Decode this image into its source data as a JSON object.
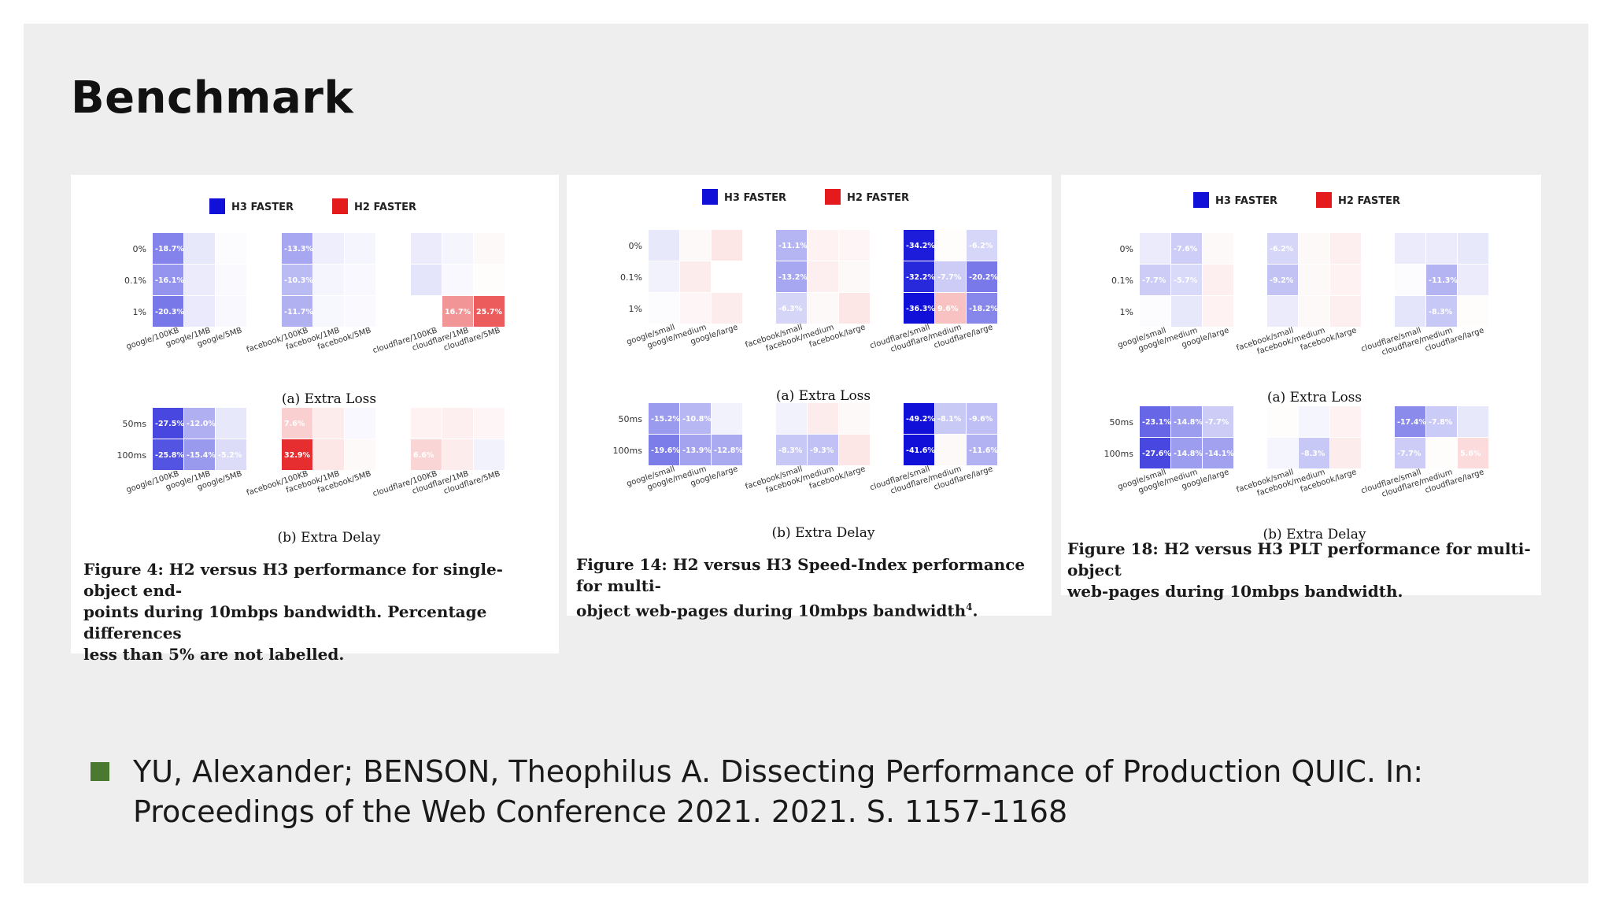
{
  "slide": {
    "title": "Benchmark",
    "reference_line1": "YU, Alexander; BENSON, Theophilus A. Dissecting Performance of Production QUIC. In:",
    "reference_line2": "Proceedings of the Web Conference 2021. 2021. S. 1157-1168",
    "bullet_color": "#4a7a30"
  },
  "colors": {
    "h3": "#1010d8",
    "h2": "#e41a1c"
  },
  "figures": [
    {
      "legend": [
        "H3 FASTER",
        "H2 FASTER"
      ],
      "caption_lines": [
        "Figure 4: H2 versus H3 performance for single-object end-",
        "points during 10mbps bandwidth. Percentage differences",
        "less than 5% are not labelled."
      ],
      "caption_sup": "",
      "subplots": [
        {
          "label": "(a) Extra Loss",
          "rows": [
            "0%",
            "0.1%",
            "1%"
          ],
          "groups": [
            {
              "cols": [
                "google/100KB",
                "google/1MB",
                "google/5MB"
              ],
              "values": [
                [
                  -18.7,
                  -3.5,
                  -0.5
                ],
                [
                  -16.1,
                  -3.0,
                  -0.8
                ],
                [
                  -20.3,
                  -3.2,
                  -1.0
                ]
              ]
            },
            {
              "cols": [
                "facebook/100KB",
                "facebook/1MB",
                "facebook/5MB"
              ],
              "values": [
                [
                  -13.3,
                  -2.5,
                  -1.5
                ],
                [
                  -10.3,
                  -1.5,
                  -1.0
                ],
                [
                  -11.7,
                  -1.2,
                  -0.8
                ]
              ]
            },
            {
              "cols": [
                "cloudflare/100KB",
                "cloudflare/1MB",
                "cloudflare/5MB"
              ],
              "values": [
                [
                  -3.0,
                  -1.5,
                  1.0
                ],
                [
                  -4.0,
                  -1.0,
                  0.5
                ],
                [
                  0,
                  16.7,
                  25.7
                ]
              ]
            }
          ]
        },
        {
          "label": "(b) Extra Delay",
          "rows": [
            "50ms",
            "100ms"
          ],
          "groups": [
            {
              "cols": [
                "google/100KB",
                "google/1MB",
                "google/5MB"
              ],
              "values": [
                [
                  -27.5,
                  -12.0,
                  -3.5
                ],
                [
                  -25.8,
                  -15.4,
                  -5.2
                ]
              ]
            },
            {
              "cols": [
                "facebook/100KB",
                "facebook/1MB",
                "facebook/5MB"
              ],
              "values": [
                [
                  7.6,
                  3.0,
                  -1.0
                ],
                [
                  32.9,
                  4.0,
                  1.0
                ]
              ]
            },
            {
              "cols": [
                "cloudflare/100KB",
                "cloudflare/1MB",
                "cloudflare/5MB"
              ],
              "values": [
                [
                  2.0,
                  2.5,
                  1.5
                ],
                [
                  6.6,
                  3.0,
                  -2.0
                ]
              ]
            }
          ]
        }
      ]
    },
    {
      "legend": [
        "H3 FASTER",
        "H2 FASTER"
      ],
      "caption_lines": [
        "Figure 14: H2 versus H3 Speed-Index performance for multi-",
        "object web-pages during 10mbps bandwidth"
      ],
      "caption_sup": "4",
      "subplots": [
        {
          "label": "(a) Extra Loss",
          "rows": [
            "0%",
            "0.1%",
            "1%"
          ],
          "groups": [
            {
              "cols": [
                "google/small",
                "google/medium",
                "google/large"
              ],
              "values": [
                [
                  -3.5,
                  1.0,
                  4.0
                ],
                [
                  -2.0,
                  3.0,
                  0
                ],
                [
                  -0.5,
                  1.5,
                  3.0
                ]
              ]
            },
            {
              "cols": [
                "facebook/small",
                "facebook/medium",
                "facebook/large"
              ],
              "values": [
                [
                  -11.1,
                  2.0,
                  1.5
                ],
                [
                  -13.2,
                  2.5,
                  1.0
                ],
                [
                  -6.3,
                  1.0,
                  4.0
                ]
              ]
            },
            {
              "cols": [
                "cloudflare/small",
                "cloudflare/medium",
                "cloudflare/large"
              ],
              "values": [
                [
                  -34.2,
                  0.5,
                  -6.2
                ],
                [
                  -32.2,
                  -7.7,
                  -20.2
                ],
                [
                  -36.3,
                  9.6,
                  -18.2
                ]
              ]
            }
          ]
        },
        {
          "label": "(b) Extra Delay",
          "rows": [
            "50ms",
            "100ms"
          ],
          "groups": [
            {
              "cols": [
                "google/small",
                "google/medium",
                "google/large"
              ],
              "values": [
                [
                  -15.2,
                  -10.8,
                  -2.0
                ],
                [
                  -19.6,
                  -13.9,
                  -12.8
                ]
              ]
            },
            {
              "cols": [
                "facebook/small",
                "facebook/medium",
                "facebook/large"
              ],
              "values": [
                [
                  -2.0,
                  3.0,
                  1.0
                ],
                [
                  -8.3,
                  -9.3,
                  4.0
                ]
              ]
            },
            {
              "cols": [
                "cloudflare/small",
                "cloudflare/medium",
                "cloudflare/large"
              ],
              "values": [
                [
                  -49.2,
                  -8.1,
                  -9.6
                ],
                [
                  -41.6,
                  1.0,
                  -11.6
                ]
              ]
            }
          ]
        }
      ]
    },
    {
      "legend": [
        "H3 FASTER",
        "H2 FASTER"
      ],
      "caption_lines": [
        "Figure 18: H2 versus H3 PLT performance for multi-object",
        "web-pages during 10mbps bandwidth."
      ],
      "caption_sup": "",
      "subplots": [
        {
          "label": "(a) Extra Loss",
          "rows": [
            "0%",
            "0.1%",
            "1%"
          ],
          "groups": [
            {
              "cols": [
                "google/small",
                "google/medium",
                "google/large"
              ],
              "values": [
                [
                  -3.0,
                  -7.6,
                  1.0
                ],
                [
                  -7.7,
                  -5.7,
                  2.5
                ],
                [
                  -0.5,
                  -3.5,
                  2.0
                ]
              ]
            },
            {
              "cols": [
                "facebook/small",
                "facebook/medium",
                "facebook/large"
              ],
              "values": [
                [
                  -6.2,
                  1.0,
                  2.5
                ],
                [
                  -9.2,
                  1.0,
                  2.0
                ],
                [
                  -3.0,
                  1.0,
                  2.5
                ]
              ]
            },
            {
              "cols": [
                "cloudflare/small",
                "cloudflare/medium",
                "cloudflare/large"
              ],
              "values": [
                [
                  -3.0,
                  -3.0,
                  -3.5
                ],
                [
                  -0.5,
                  -11.3,
                  -3.0
                ],
                [
                  -4.0,
                  -8.3,
                  0.5
                ]
              ]
            }
          ]
        },
        {
          "label": "(b) Extra Delay",
          "rows": [
            "50ms",
            "100ms"
          ],
          "groups": [
            {
              "cols": [
                "google/small",
                "google/medium",
                "google/large"
              ],
              "values": [
                [
                  -23.1,
                  -14.8,
                  -7.7
                ],
                [
                  -27.6,
                  -14.8,
                  -14.1
                ]
              ]
            },
            {
              "cols": [
                "facebook/small",
                "facebook/medium",
                "facebook/large"
              ],
              "values": [
                [
                  0.5,
                  -1.5,
                  2.0
                ],
                [
                  -1.5,
                  -8.3,
                  3.0
                ]
              ]
            },
            {
              "cols": [
                "cloudflare/small",
                "cloudflare/medium",
                "cloudflare/large"
              ],
              "values": [
                [
                  -17.4,
                  -7.8,
                  -3.5
                ],
                [
                  -7.7,
                  0.5,
                  5.6
                ]
              ]
            }
          ]
        }
      ]
    }
  ]
}
